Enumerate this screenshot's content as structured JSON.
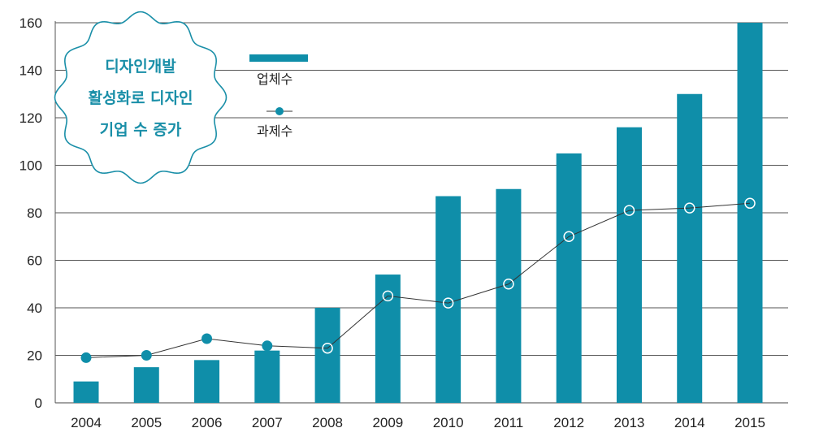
{
  "chart_data": {
    "type": "bar",
    "title": "",
    "xlabel": "",
    "ylabel": "",
    "ylim": [
      0,
      160
    ],
    "yticks": [
      0,
      20,
      40,
      60,
      80,
      100,
      120,
      140,
      160
    ],
    "categories": [
      "2004",
      "2005",
      "2006",
      "2007",
      "2008",
      "2009",
      "2010",
      "2011",
      "2012",
      "2013",
      "2014",
      "2015"
    ],
    "series": [
      {
        "name": "업체수",
        "kind": "bar",
        "color": "#0f8ea9",
        "values": [
          9,
          15,
          18,
          22,
          40,
          54,
          87,
          90,
          105,
          116,
          130,
          160
        ]
      },
      {
        "name": "과제수",
        "kind": "line",
        "color": "#0f8ea9",
        "values": [
          19,
          20,
          27,
          24,
          23,
          45,
          42,
          50,
          70,
          81,
          82,
          84
        ]
      }
    ],
    "grid": true,
    "legend_position": "top-left",
    "annotation": {
      "lines": [
        "디자인개발",
        "활성화로 디자인",
        "기업 수 증가"
      ],
      "color": "#1a8fa8"
    }
  }
}
